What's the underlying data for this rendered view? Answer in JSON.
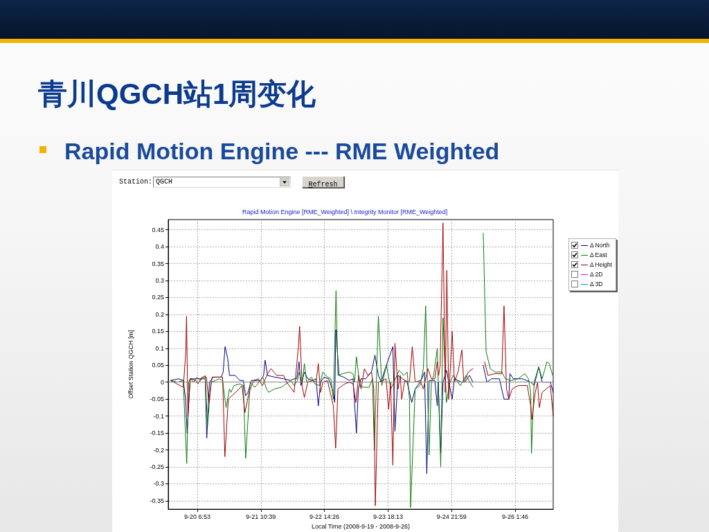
{
  "chart_data": {
    "type": "line",
    "title": "青川QGCH站1周变化",
    "subtitle": "Rapid Motion Engine --- RME Weighted",
    "annotations": [
      "Rapid Motion Engine [RME_Weighted] \\ Integrity Monitor [RME_Weighted]",
      "Station:",
      "QGCH",
      "Refresh"
    ],
    "xlabel": "Local Time (2008-9-19 - 2008-9-26)",
    "ylabel": "Offset Station QGCH [m]",
    "xlim": [
      "2008-09-19T18:10",
      "2008-09-26T18:25"
    ],
    "xticks": [
      {
        "value": "2008-09-20T06:53",
        "label": "9-20 6:53"
      },
      {
        "value": "2008-09-21T10:39",
        "label": "9-21 10:39"
      },
      {
        "value": "2008-09-22T14:26",
        "label": "9-22 14:26"
      },
      {
        "value": "2008-09-23T18:13",
        "label": "9-23 18:13"
      },
      {
        "value": "2008-09-24T21:59",
        "label": "9-24 21:59"
      },
      {
        "value": "2008-09-26T01:46",
        "label": "9-26 1:46"
      }
    ],
    "ylim": [
      -0.375,
      0.48
    ],
    "yticks": [
      -0.35,
      -0.3,
      -0.25,
      -0.2,
      -0.15,
      -0.1,
      -0.05,
      0,
      0.05,
      0.1,
      0.15,
      0.2,
      0.25,
      0.3,
      0.35,
      0.4,
      0.45
    ],
    "grid": true,
    "legend": "right",
    "marker": "none",
    "line_style": "solid",
    "ref_lines": [
      {
        "axis": "y",
        "value": 0,
        "color": "#808080"
      }
    ],
    "series": [
      {
        "name": "Δ North",
        "color": "#000080",
        "x": [
          "2008-09-19T19:10",
          "2008-09-19T22:40",
          "2008-09-20T00:45",
          "2008-09-20T01:45",
          "2008-09-20T02:25",
          "2008-09-20T03:45",
          "2008-09-20T07:20",
          "2008-09-20T10:20",
          "2008-09-20T11:00",
          "2008-09-20T12:10",
          "2008-09-20T13:50",
          "2008-09-20T17:20",
          "2008-09-20T18:10",
          "2008-09-20T19:00",
          "2008-09-20T20:10",
          "2008-09-20T20:55",
          "2008-09-20T23:25",
          "2008-09-21T01:25",
          "2008-09-21T03:00",
          "2008-09-21T04:00",
          "2008-09-21T05:00",
          "2008-09-21T06:30",
          "2008-09-21T10:30",
          "2008-09-21T11:50",
          "2008-09-21T12:30",
          "2008-09-21T13:35",
          "2008-09-21T16:35",
          "2008-09-21T20:35",
          "2008-09-21T23:40",
          "2008-09-22T01:10",
          "2008-09-22T02:20",
          "2008-09-22T03:20",
          "2008-09-22T04:10",
          "2008-09-22T05:40",
          "2008-09-22T07:10",
          "2008-09-22T09:15",
          "2008-09-22T10:45",
          "2008-09-22T11:45",
          "2008-09-22T12:45",
          "2008-09-22T14:15",
          "2008-09-22T16:15",
          "2008-09-22T18:20",
          "2008-09-22T18:55",
          "2008-09-22T19:25",
          "2008-09-22T20:50",
          "2008-09-22T22:50",
          "2008-09-23T01:20",
          "2008-09-23T02:55",
          "2008-09-23T04:25",
          "2008-09-23T05:15",
          "2008-09-23T06:25",
          "2008-09-23T08:25",
          "2008-09-23T11:00",
          "2008-09-23T12:30",
          "2008-09-23T14:00",
          "2008-09-23T15:15",
          "2008-09-23T16:30",
          "2008-09-23T20:20",
          "2008-09-23T21:15",
          "2008-09-23T22:35",
          "2008-09-24T00:35",
          "2008-09-24T02:35",
          "2008-09-24T04:35",
          "2008-09-24T06:05",
          "2008-09-24T08:40",
          "2008-09-24T10:10",
          "2008-09-24T11:10",
          "2008-09-24T12:10",
          "2008-09-24T14:40",
          "2008-09-24T15:45",
          "2008-09-24T16:10",
          "2008-09-24T17:15",
          "2008-09-24T18:15",
          "2008-09-24T19:45",
          "2008-09-24T22:15",
          "2008-09-24T23:15",
          "2008-09-25T02:20",
          "2008-09-25T03:50",
          "2008-09-25T05:50",
          "2008-09-25T07:20",
          "2008-09-25T09:30",
          "2008-09-25T11:50",
          "2008-09-25T13:25",
          "2008-09-25T15:25",
          "2008-09-25T18:55",
          "2008-09-25T20:55",
          "2008-09-25T23:00",
          "2008-09-25T23:30",
          "2008-09-26T01:00",
          "2008-09-26T05:00",
          "2008-09-26T08:35",
          "2008-09-26T10:05",
          "2008-09-26T12:05",
          "2008-09-26T13:35",
          "2008-09-26T17:10",
          "2008-09-26T18:25"
        ],
        "values": [
          0.005,
          0.01,
          0.005,
          -0.05,
          -0.15,
          0.01,
          0.01,
          0.01,
          -0.165,
          0,
          0.015,
          0.015,
          0.03,
          0.105,
          0.07,
          0.02,
          0.02,
          0.005,
          0.005,
          -0.04,
          -0.03,
          0.005,
          0.005,
          0.02,
          0.065,
          0.02,
          0.015,
          0.01,
          0.005,
          0.01,
          0.01,
          0.06,
          -0.01,
          0.03,
          0.01,
          0.005,
          0.01,
          -0.07,
          0,
          0.015,
          0.01,
          -0.03,
          -0.06,
          0.155,
          0.02,
          0.015,
          0.005,
          0.01,
          -0.15,
          -0.02,
          0.01,
          0.01,
          0.03,
          0.08,
          0.02,
          0,
          0.03,
          0.105,
          -0.145,
          0.02,
          0.01,
          0,
          -0.06,
          -0.02,
          0.005,
          0.03,
          -0.27,
          0.005,
          0.005,
          -0.07,
          0,
          -0.21,
          0,
          0.035,
          -0.05,
          0.01,
          0,
          0,
          0.02,
          0,
          null,
          0.05,
          0,
          0.01,
          0.01,
          -0.05,
          -0.05,
          0.025,
          0.01,
          0.01,
          0,
          -0.01,
          0.045,
          0,
          0,
          -0.03
        ]
      },
      {
        "name": "Δ East",
        "color": "#0a7a0a",
        "x": [
          "2008-09-19T19:10",
          "2008-09-19T22:15",
          "2008-09-20T00:45",
          "2008-09-20T01:25",
          "2008-09-20T02:15",
          "2008-09-20T03:05",
          "2008-09-20T03:45",
          "2008-09-20T05:15",
          "2008-09-20T06:45",
          "2008-09-20T08:20",
          "2008-09-20T10:20",
          "2008-09-20T11:20",
          "2008-09-20T12:50",
          "2008-09-20T14:50",
          "2008-09-20T16:20",
          "2008-09-20T17:55",
          "2008-09-20T19:25",
          "2008-09-20T20:55",
          "2008-09-20T21:35",
          "2008-09-20T22:55",
          "2008-09-21T01:25",
          "2008-09-21T03:00",
          "2008-09-21T04:00",
          "2008-09-21T06:00",
          "2008-09-21T08:00",
          "2008-09-21T10:30",
          "2008-09-21T11:30",
          "2008-09-21T13:05",
          "2008-09-21T14:05",
          "2008-09-21T16:35",
          "2008-09-21T19:35",
          "2008-09-21T21:35",
          "2008-09-21T23:40",
          "2008-09-22T01:10",
          "2008-09-22T02:40",
          "2008-09-22T03:20",
          "2008-09-22T04:40",
          "2008-09-22T05:40",
          "2008-09-22T06:40",
          "2008-09-22T08:45",
          "2008-09-22T10:15",
          "2008-09-22T12:15",
          "2008-09-22T13:45",
          "2008-09-22T15:45",
          "2008-09-22T17:15",
          "2008-09-22T18:20",
          "2008-09-22T19:30",
          "2008-09-22T20:20",
          "2008-09-22T22:20",
          "2008-09-23T01:20",
          "2008-09-23T02:55",
          "2008-09-23T03:35",
          "2008-09-23T04:25",
          "2008-09-23T05:55",
          "2008-09-23T07:25",
          "2008-09-23T09:55",
          "2008-09-23T11:25",
          "2008-09-23T12:15",
          "2008-09-23T14:00",
          "2008-09-23T15:30",
          "2008-09-23T17:30",
          "2008-09-23T19:30",
          "2008-09-23T23:05",
          "2008-09-24T01:05",
          "2008-09-24T02:35",
          "2008-09-24T03:35",
          "2008-09-24T04:05",
          "2008-09-24T06:05",
          "2008-09-24T08:10",
          "2008-09-24T09:40",
          "2008-09-24T10:40",
          "2008-09-24T12:10",
          "2008-09-24T13:10",
          "2008-09-24T14:10",
          "2008-09-24T15:45",
          "2008-09-24T17:15",
          "2008-09-24T18:15",
          "2008-09-24T19:45",
          "2008-09-24T21:15",
          "2008-09-24T22:45",
          "2008-09-25T01:50",
          "2008-09-25T04:20",
          "2008-09-25T07:20",
          "2008-09-25T09:30",
          "2008-09-25T11:50",
          "2008-09-25T13:05",
          "2008-09-25T14:55",
          "2008-09-25T16:55",
          "2008-09-25T19:55",
          "2008-09-25T21:30",
          "2008-09-26T00:00",
          "2008-09-26T03:00",
          "2008-09-26T06:00",
          "2008-09-26T07:35",
          "2008-09-26T08:35",
          "2008-09-26T08:55",
          "2008-09-26T10:05",
          "2008-09-26T12:05",
          "2008-09-26T13:35",
          "2008-09-26T15:40",
          "2008-09-26T16:40",
          "2008-09-26T18:10"
        ],
        "values": [
          0.005,
          0,
          0.005,
          -0.11,
          -0.24,
          0,
          0.01,
          0,
          0.015,
          0.005,
          0.02,
          -0.13,
          0,
          0.005,
          0.01,
          0.005,
          -0.075,
          -0.02,
          -0.03,
          -0.01,
          -0.005,
          -0.01,
          -0.225,
          0,
          -0.015,
          0.005,
          0.015,
          -0.02,
          -0.03,
          -0.02,
          -0.015,
          -0.005,
          0.005,
          -0.01,
          0.005,
          0.03,
          -0.005,
          0.055,
          0,
          0.015,
          -0.005,
          -0.01,
          0.03,
          0.015,
          0.01,
          -0.05,
          0.27,
          0.02,
          0.025,
          0.03,
          0.025,
          0,
          0.075,
          -0.01,
          -0.015,
          -0.015,
          0.01,
          -0.2,
          0.195,
          -0.01,
          0.05,
          -0.02,
          0.035,
          0.02,
          0.03,
          -0.05,
          -0.37,
          -0.02,
          -0.01,
          0.04,
          0.225,
          -0.215,
          0,
          0.02,
          0.1,
          -0.25,
          0.19,
          -0.06,
          0,
          0.02,
          -0.01,
          0.02,
          -0.015,
          null,
          0.44,
          0.09,
          0.04,
          0.03,
          0.03,
          0.01,
          0.005,
          0.01,
          0.025,
          0.01,
          -0.03,
          -0.21,
          0,
          0.045,
          0.01,
          0.06,
          0.055,
          0.02
        ]
      },
      {
        "name": "Δ Height",
        "color": "#a00000",
        "x": [
          "2008-09-19T19:10",
          "2008-09-20T00:45",
          "2008-09-20T01:50",
          "2008-09-20T02:10",
          "2008-09-20T02:45",
          "2008-09-20T03:45",
          "2008-09-20T06:15",
          "2008-09-20T07:05",
          "2008-09-20T08:50",
          "2008-09-20T10:50",
          "2008-09-20T11:55",
          "2008-09-20T13:20",
          "2008-09-20T17:55",
          "2008-09-20T18:55",
          "2008-09-20T20:25",
          "2008-09-20T21:55",
          "2008-09-21T00:25",
          "2008-09-21T02:25",
          "2008-09-21T03:40",
          "2008-09-21T05:30",
          "2008-09-21T07:30",
          "2008-09-21T09:30",
          "2008-09-21T11:20",
          "2008-09-21T13:35",
          "2008-09-21T15:05",
          "2008-09-21T17:35",
          "2008-09-21T20:35",
          "2008-09-21T21:55",
          "2008-09-22T00:40",
          "2008-09-22T01:10",
          "2008-09-22T03:00",
          "2008-09-22T03:35",
          "2008-09-22T04:40",
          "2008-09-22T05:40",
          "2008-09-22T07:10",
          "2008-09-22T09:15",
          "2008-09-22T10:45",
          "2008-09-22T11:45",
          "2008-09-22T12:45",
          "2008-09-22T13:45",
          "2008-09-22T15:45",
          "2008-09-22T18:20",
          "2008-09-22T19:20",
          "2008-09-22T20:20",
          "2008-09-22T21:20",
          "2008-09-22T23:20",
          "2008-09-23T01:20",
          "2008-09-23T02:55",
          "2008-09-23T04:10",
          "2008-09-23T05:25",
          "2008-09-23T06:25",
          "2008-09-23T07:55",
          "2008-09-23T09:25",
          "2008-09-23T11:00",
          "2008-09-23T12:00",
          "2008-09-23T12:40",
          "2008-09-23T14:00",
          "2008-09-23T16:00",
          "2008-09-23T17:20",
          "2008-09-23T18:30",
          "2008-09-23T19:20",
          "2008-09-23T20:20",
          "2008-09-23T21:15",
          "2008-09-23T22:35",
          "2008-09-23T23:35",
          "2008-09-24T00:10",
          "2008-09-24T01:35",
          "2008-09-24T03:35",
          "2008-09-24T04:50",
          "2008-09-24T06:05",
          "2008-09-24T08:10",
          "2008-09-24T09:40",
          "2008-09-24T11:40",
          "2008-09-24T13:10",
          "2008-09-24T14:40",
          "2008-09-24T15:45",
          "2008-09-24T16:20",
          "2008-09-24T17:00",
          "2008-09-24T18:15",
          "2008-09-24T19:15",
          "2008-09-24T19:55",
          "2008-09-24T20:45",
          "2008-09-24T22:15",
          "2008-09-24T23:15",
          "2008-09-25T00:50",
          "2008-09-25T02:30",
          "2008-09-25T03:20",
          "2008-09-25T05:20",
          "2008-09-25T07:20",
          "2008-09-25T09:30",
          "2008-09-25T12:25",
          "2008-09-25T13:55",
          "2008-09-25T16:55",
          "2008-09-25T19:55",
          "2008-09-25T20:55",
          "2008-09-25T22:00",
          "2008-09-25T23:00",
          "2008-09-26T00:30",
          "2008-09-26T03:00",
          "2008-09-26T07:05",
          "2008-09-26T08:35",
          "2008-09-26T09:05",
          "2008-09-26T10:35",
          "2008-09-26T11:35",
          "2008-09-26T12:20",
          "2008-09-26T13:35",
          "2008-09-26T17:10",
          "2008-09-26T18:25"
        ],
        "values": [
          0.005,
          -0.015,
          0.09,
          0.195,
          -0.1,
          0.01,
          0.005,
          -0.005,
          0.015,
          0.015,
          -0.06,
          0.015,
          0.015,
          -0.22,
          -0.05,
          -0.04,
          -0.025,
          -0.01,
          -0.09,
          -0.03,
          0.005,
          0.01,
          -0.01,
          0.025,
          0.04,
          0.02,
          0.02,
          0,
          -0.025,
          -0.03,
          0.1,
          0.165,
          -0.01,
          -0.045,
          0,
          0.005,
          0,
          0.055,
          -0.03,
          0,
          0.005,
          -0.07,
          -0.195,
          -0.02,
          -0.015,
          -0.005,
          0,
          -0.005,
          -0.06,
          0.02,
          -0.02,
          0.04,
          0.02,
          0.03,
          -0.02,
          -0.365,
          0,
          0.005,
          0.01,
          -0.08,
          0,
          -0.245,
          0.115,
          -0.02,
          0.02,
          -0.05,
          0.005,
          0,
          0.105,
          0,
          0.005,
          -0.02,
          0.04,
          0.01,
          0.01,
          0.06,
          0.02,
          0.05,
          0.47,
          -0.03,
          0.33,
          -0.05,
          0.15,
          0,
          0.03,
          0.095,
          0,
          0.03,
          0.04,
          null,
          0.06,
          0.02,
          0.025,
          0.025,
          0.225,
          -0.02,
          -0.05,
          -0.02,
          -0.01,
          -0.01,
          -0.07,
          -0.11,
          -0.03,
          0,
          -0.075,
          -0.03,
          -0.01,
          -0.1
        ]
      },
      {
        "name": "Δ 2D",
        "color": "#ff00ff"
      },
      {
        "name": "Δ 3D",
        "color": "#00a0a0"
      }
    ]
  }
}
